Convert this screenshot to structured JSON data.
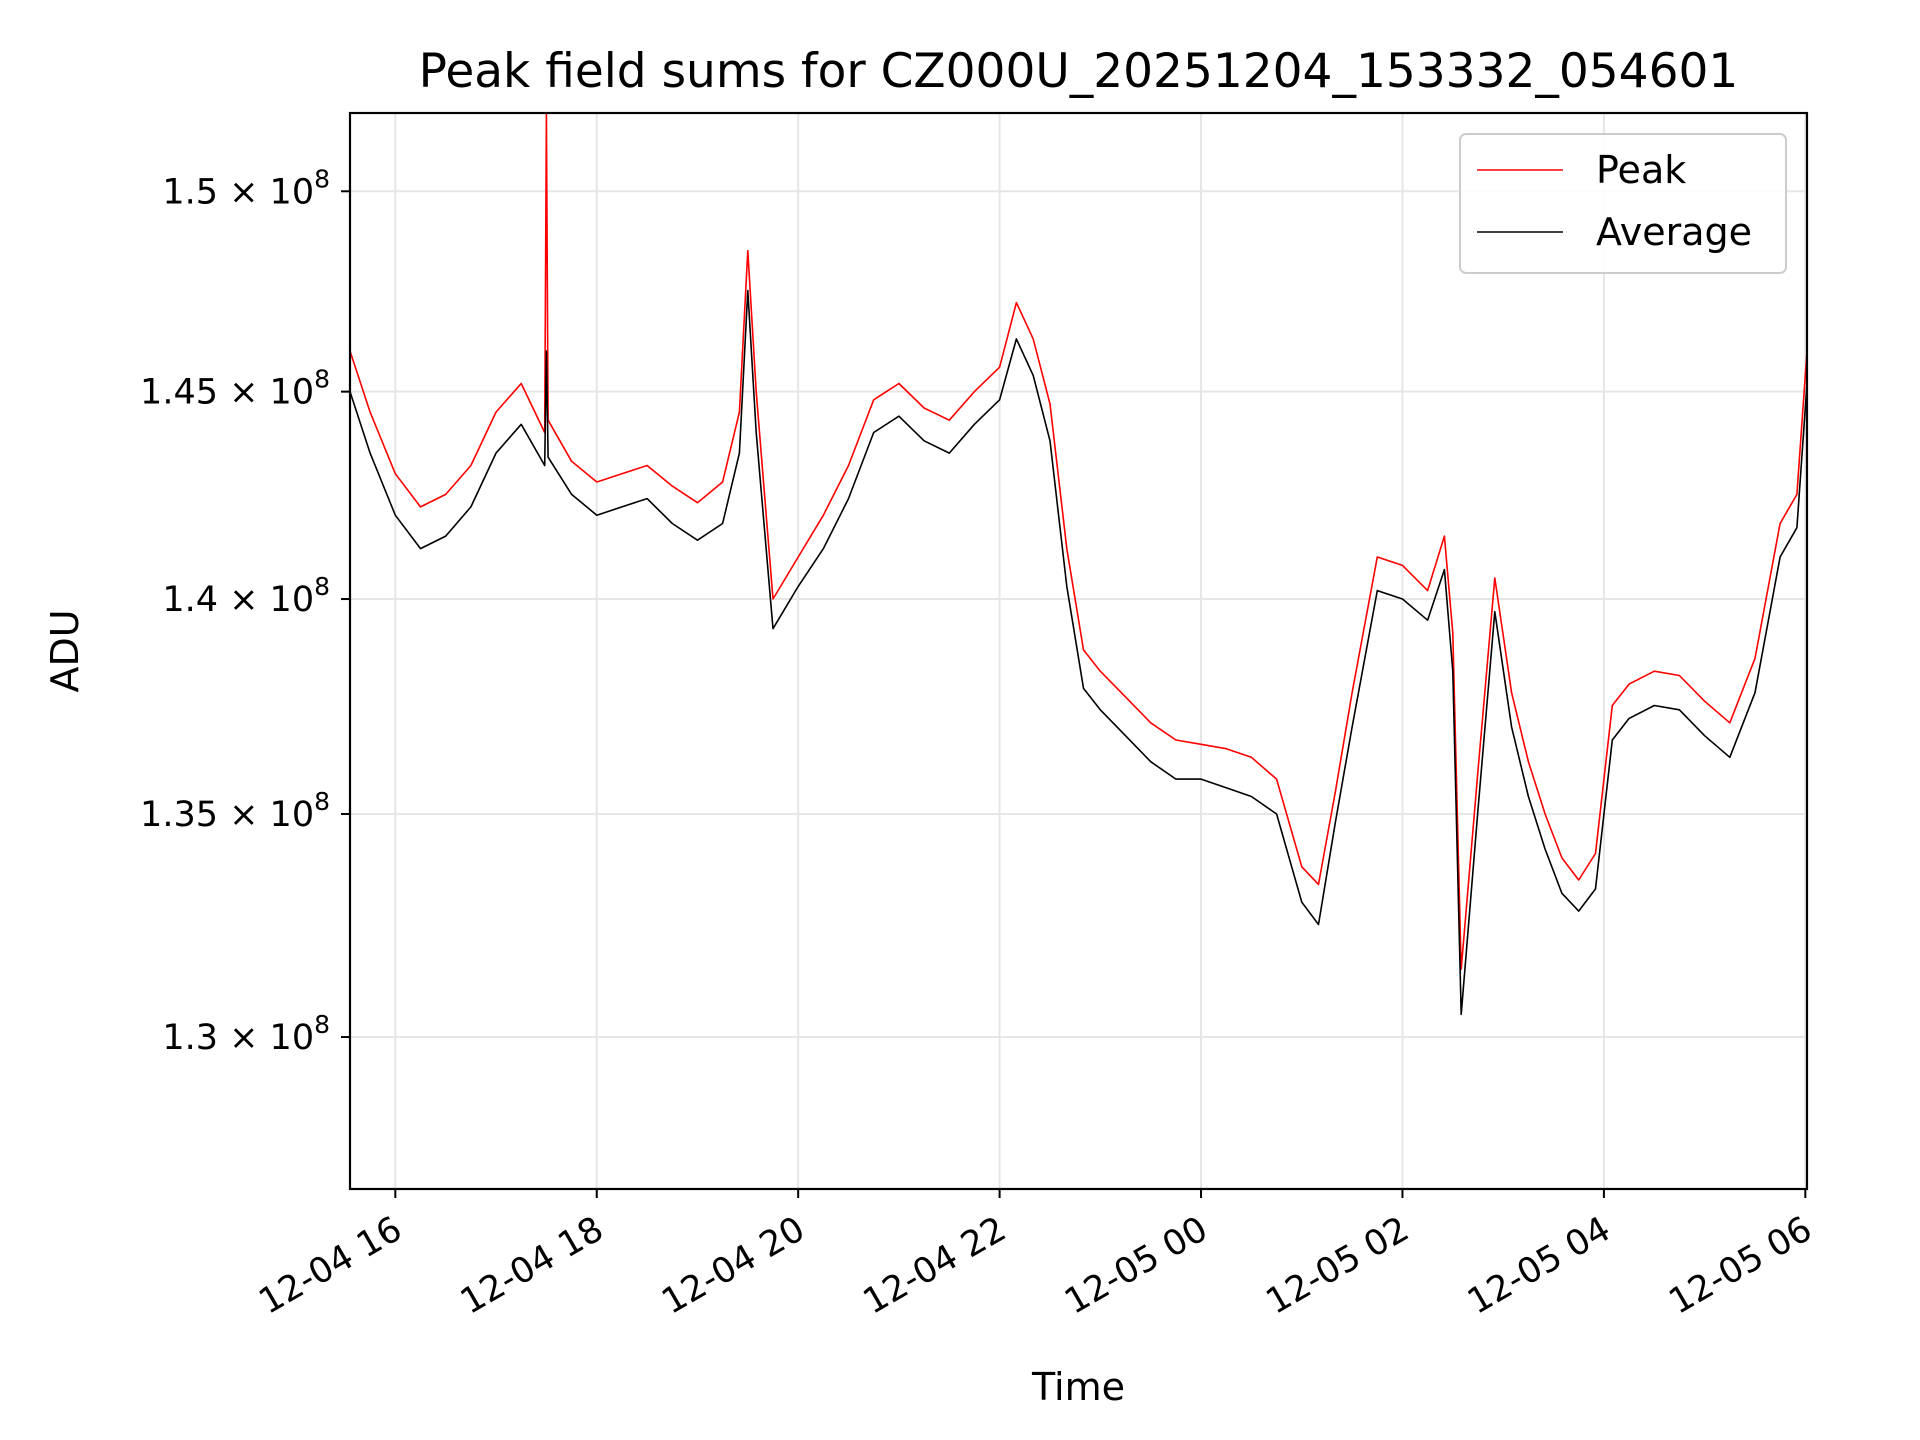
{
  "chart_data": {
    "type": "line",
    "title": "Peak field sums for CZ000U_20251204_153332_054601",
    "xlabel": "Time",
    "ylabel": "ADU",
    "x_range": [
      "2025-12-04 15:33",
      "2025-12-05 06:01"
    ],
    "ylim": [
      126700000,
      152000000
    ],
    "x_ticks": [
      {
        "label": "12-04 16",
        "time": "2025-12-04 16:00"
      },
      {
        "label": "12-04 18",
        "time": "2025-12-04 18:00"
      },
      {
        "label": "12-04 20",
        "time": "2025-12-04 20:00"
      },
      {
        "label": "12-04 22",
        "time": "2025-12-04 22:00"
      },
      {
        "label": "12-05 00",
        "time": "2025-12-05 00:00"
      },
      {
        "label": "12-05 02",
        "time": "2025-12-05 02:00"
      },
      {
        "label": "12-05 04",
        "time": "2025-12-05 04:00"
      },
      {
        "label": "12-05 06",
        "time": "2025-12-05 06:00"
      }
    ],
    "y_ticks": [
      {
        "value": 130000000,
        "mantissa": "1.3",
        "exp": "8"
      },
      {
        "value": 135000000,
        "mantissa": "1.35",
        "exp": "8"
      },
      {
        "value": 140000000,
        "mantissa": "1.4",
        "exp": "8"
      },
      {
        "value": 145000000,
        "mantissa": "1.45",
        "exp": "8"
      },
      {
        "value": 150000000,
        "mantissa": "1.5",
        "exp": "8"
      }
    ],
    "y_scale": "log",
    "grid": true,
    "legend_position": "top-right",
    "series": [
      {
        "name": "Peak",
        "color": "#ff0000",
        "x": [
          "2025-12-04 15:33",
          "2025-12-04 15:45",
          "2025-12-04 16:00",
          "2025-12-04 16:15",
          "2025-12-04 16:30",
          "2025-12-04 16:45",
          "2025-12-04 17:00",
          "2025-12-04 17:15",
          "2025-12-04 17:29",
          "2025-12-04 17:30",
          "2025-12-04 17:31",
          "2025-12-04 17:45",
          "2025-12-04 18:00",
          "2025-12-04 18:15",
          "2025-12-04 18:30",
          "2025-12-04 18:45",
          "2025-12-04 19:00",
          "2025-12-04 19:15",
          "2025-12-04 19:25",
          "2025-12-04 19:30",
          "2025-12-04 19:35",
          "2025-12-04 19:45",
          "2025-12-04 20:00",
          "2025-12-04 20:15",
          "2025-12-04 20:30",
          "2025-12-04 20:45",
          "2025-12-04 21:00",
          "2025-12-04 21:15",
          "2025-12-04 21:30",
          "2025-12-04 21:45",
          "2025-12-04 22:00",
          "2025-12-04 22:10",
          "2025-12-04 22:20",
          "2025-12-04 22:30",
          "2025-12-04 22:40",
          "2025-12-04 22:50",
          "2025-12-04 23:00",
          "2025-12-04 23:15",
          "2025-12-04 23:30",
          "2025-12-04 23:45",
          "2025-12-05 00:00",
          "2025-12-05 00:15",
          "2025-12-05 00:30",
          "2025-12-05 00:45",
          "2025-12-05 01:00",
          "2025-12-05 01:10",
          "2025-12-05 01:20",
          "2025-12-05 01:30",
          "2025-12-05 01:45",
          "2025-12-05 02:00",
          "2025-12-05 02:15",
          "2025-12-05 02:25",
          "2025-12-05 02:30",
          "2025-12-05 02:35",
          "2025-12-05 02:45",
          "2025-12-05 02:55",
          "2025-12-05 03:05",
          "2025-12-05 03:15",
          "2025-12-05 03:25",
          "2025-12-05 03:35",
          "2025-12-05 03:45",
          "2025-12-05 03:55",
          "2025-12-05 04:05",
          "2025-12-05 04:15",
          "2025-12-05 04:30",
          "2025-12-05 04:45",
          "2025-12-05 05:00",
          "2025-12-05 05:15",
          "2025-12-05 05:30",
          "2025-12-05 05:45",
          "2025-12-05 05:55",
          "2025-12-05 06:01"
        ],
        "values": [
          146000000,
          144500000,
          143000000,
          142200000,
          142500000,
          143200000,
          144500000,
          145200000,
          144000000,
          152000000,
          144300000,
          143300000,
          142800000,
          143000000,
          143200000,
          142700000,
          142300000,
          142800000,
          144500000,
          148500000,
          145000000,
          140000000,
          141000000,
          142000000,
          143200000,
          144800000,
          145200000,
          144600000,
          144300000,
          145000000,
          145600000,
          147200000,
          146300000,
          144700000,
          141200000,
          138800000,
          138300000,
          137700000,
          137100000,
          136700000,
          136600000,
          136500000,
          136300000,
          135800000,
          133800000,
          133400000,
          135500000,
          137800000,
          141000000,
          140800000,
          140200000,
          141500000,
          139200000,
          131500000,
          136000000,
          140500000,
          137800000,
          136200000,
          135000000,
          134000000,
          133500000,
          134100000,
          137500000,
          138000000,
          138300000,
          138200000,
          137600000,
          137100000,
          138600000,
          141800000,
          142500000,
          146000000
        ]
      },
      {
        "name": "Average",
        "color": "#000000",
        "x": [
          "2025-12-04 15:33",
          "2025-12-04 15:45",
          "2025-12-04 16:00",
          "2025-12-04 16:15",
          "2025-12-04 16:30",
          "2025-12-04 16:45",
          "2025-12-04 17:00",
          "2025-12-04 17:15",
          "2025-12-04 17:29",
          "2025-12-04 17:30",
          "2025-12-04 17:31",
          "2025-12-04 17:45",
          "2025-12-04 18:00",
          "2025-12-04 18:15",
          "2025-12-04 18:30",
          "2025-12-04 18:45",
          "2025-12-04 19:00",
          "2025-12-04 19:15",
          "2025-12-04 19:25",
          "2025-12-04 19:30",
          "2025-12-04 19:35",
          "2025-12-04 19:45",
          "2025-12-04 20:00",
          "2025-12-04 20:15",
          "2025-12-04 20:30",
          "2025-12-04 20:45",
          "2025-12-04 21:00",
          "2025-12-04 21:15",
          "2025-12-04 21:30",
          "2025-12-04 21:45",
          "2025-12-04 22:00",
          "2025-12-04 22:10",
          "2025-12-04 22:20",
          "2025-12-04 22:30",
          "2025-12-04 22:40",
          "2025-12-04 22:50",
          "2025-12-04 23:00",
          "2025-12-04 23:15",
          "2025-12-04 23:30",
          "2025-12-04 23:45",
          "2025-12-05 00:00",
          "2025-12-05 00:15",
          "2025-12-05 00:30",
          "2025-12-05 00:45",
          "2025-12-05 01:00",
          "2025-12-05 01:10",
          "2025-12-05 01:20",
          "2025-12-05 01:30",
          "2025-12-05 01:45",
          "2025-12-05 02:00",
          "2025-12-05 02:15",
          "2025-12-05 02:25",
          "2025-12-05 02:30",
          "2025-12-05 02:35",
          "2025-12-05 02:45",
          "2025-12-05 02:55",
          "2025-12-05 03:05",
          "2025-12-05 03:15",
          "2025-12-05 03:25",
          "2025-12-05 03:35",
          "2025-12-05 03:45",
          "2025-12-05 03:55",
          "2025-12-05 04:05",
          "2025-12-05 04:15",
          "2025-12-05 04:30",
          "2025-12-05 04:45",
          "2025-12-05 05:00",
          "2025-12-05 05:15",
          "2025-12-05 05:30",
          "2025-12-05 05:45",
          "2025-12-05 05:55",
          "2025-12-05 06:01"
        ],
        "values": [
          145000000,
          143500000,
          142000000,
          141200000,
          141500000,
          142200000,
          143500000,
          144200000,
          143200000,
          146000000,
          143400000,
          142500000,
          142000000,
          142200000,
          142400000,
          141800000,
          141400000,
          141800000,
          143500000,
          147500000,
          144000000,
          139300000,
          140300000,
          141200000,
          142400000,
          144000000,
          144400000,
          143800000,
          143500000,
          144200000,
          144800000,
          146300000,
          145400000,
          143800000,
          140300000,
          137900000,
          137400000,
          136800000,
          136200000,
          135800000,
          135800000,
          135600000,
          135400000,
          135000000,
          133000000,
          132500000,
          134800000,
          137000000,
          140200000,
          140000000,
          139500000,
          140700000,
          138300000,
          130500000,
          135100000,
          139700000,
          137000000,
          135400000,
          134200000,
          133200000,
          132800000,
          133300000,
          136700000,
          137200000,
          137500000,
          137400000,
          136800000,
          136300000,
          137800000,
          141000000,
          141700000,
          145200000
        ]
      }
    ]
  }
}
